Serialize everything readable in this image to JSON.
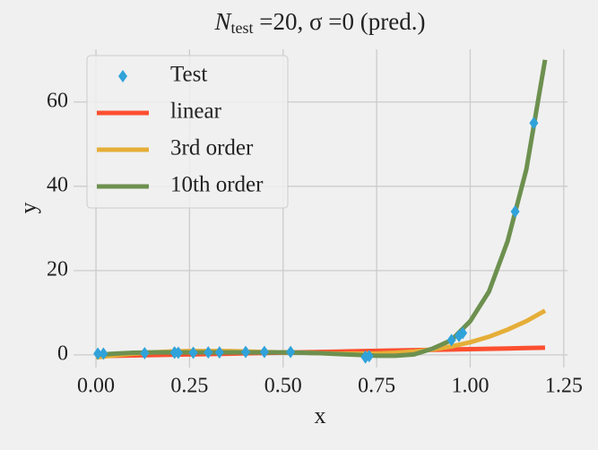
{
  "chart_data": {
    "type": "line",
    "title": [
      "N",
      "test",
      " =20, σ =0 (pred.)"
    ],
    "xlabel": "x",
    "ylabel": "y",
    "xlim": [
      -0.06,
      1.26
    ],
    "ylim": [
      -3,
      72.5
    ],
    "xticks": [
      {
        "value": 0,
        "label": "0.00"
      },
      {
        "value": 0.25,
        "label": "0.25"
      },
      {
        "value": 0.5,
        "label": "0.50"
      },
      {
        "value": 0.75,
        "label": "0.75"
      },
      {
        "value": 1,
        "label": "1.00"
      },
      {
        "value": 1.25,
        "label": "1.25"
      }
    ],
    "yticks": [
      0,
      20,
      40,
      60
    ],
    "grid": true,
    "legend": "upper left",
    "series": [
      {
        "name": "Test",
        "color": "#30a2da",
        "style": "marker",
        "x": [
          0.005,
          0.02,
          0.13,
          0.21,
          0.21,
          0.22,
          0.26,
          0.3,
          0.33,
          0.4,
          0.45,
          0.52,
          0.72,
          0.72,
          0.73,
          0.95,
          0.97,
          0.98,
          1.12,
          1.17
        ],
        "values": [
          0.3,
          0.3,
          0.4,
          0.5,
          0.6,
          0.5,
          0.5,
          0.6,
          0.6,
          0.7,
          0.7,
          0.7,
          -0.4,
          -0.6,
          -0.3,
          3.5,
          4.5,
          5.2,
          34,
          55
        ]
      },
      {
        "name": "linear",
        "color": "#fc4f30",
        "style": "line",
        "x": [
          0,
          0.05,
          0.1,
          0.15,
          0.2,
          0.25,
          0.3,
          0.35,
          0.4,
          0.45,
          0.5,
          0.55,
          0.6,
          0.65,
          0.7,
          0.75,
          0.8,
          0.85,
          0.9,
          0.95,
          1.0,
          1.05,
          1.1,
          1.15,
          1.2
        ],
        "values": [
          -0.3,
          -0.22,
          -0.13,
          -0.05,
          0.03,
          0.12,
          0.2,
          0.28,
          0.37,
          0.45,
          0.53,
          0.62,
          0.7,
          0.78,
          0.87,
          0.95,
          1.03,
          1.12,
          1.2,
          1.28,
          1.37,
          1.45,
          1.53,
          1.62,
          1.7
        ]
      },
      {
        "name": "3rd order",
        "color": "#e5ae38",
        "style": "line",
        "x": [
          0,
          0.05,
          0.1,
          0.15,
          0.2,
          0.25,
          0.3,
          0.35,
          0.4,
          0.45,
          0.5,
          0.55,
          0.6,
          0.65,
          0.7,
          0.75,
          0.8,
          0.85,
          0.9,
          0.95,
          1.0,
          1.05,
          1.1,
          1.15,
          1.2
        ],
        "values": [
          -0.6,
          -0.1,
          0.3,
          0.6,
          0.8,
          0.9,
          0.9,
          0.9,
          0.8,
          0.7,
          0.6,
          0.5,
          0.4,
          0.3,
          0.3,
          0.3,
          0.5,
          0.8,
          1.3,
          2.0,
          3.0,
          4.3,
          6.0,
          8.0,
          10.5
        ]
      },
      {
        "name": "10th order",
        "color": "#6d904f",
        "style": "line",
        "x": [
          0,
          0.05,
          0.1,
          0.15,
          0.2,
          0.25,
          0.3,
          0.35,
          0.4,
          0.45,
          0.5,
          0.55,
          0.6,
          0.65,
          0.7,
          0.75,
          0.8,
          0.85,
          0.9,
          0.95,
          1.0,
          1.05,
          1.1,
          1.15,
          1.2
        ],
        "values": [
          0,
          0.3,
          0.5,
          0.6,
          0.6,
          0.6,
          0.6,
          0.6,
          0.6,
          0.6,
          0.6,
          0.5,
          0.4,
          0.2,
          0,
          -0.2,
          -0.2,
          0.1,
          1.5,
          3.5,
          8,
          15,
          27,
          44,
          70
        ]
      }
    ]
  }
}
